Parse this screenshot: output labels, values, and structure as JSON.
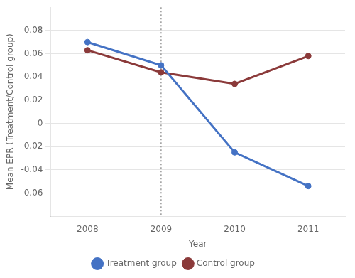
{
  "chart_data": {
    "type": "line",
    "x_label": "Year",
    "y_label": "Mean EPR (Treatment/Control group)",
    "x": [
      2008,
      2009,
      2010,
      2011
    ],
    "series": [
      {
        "name": "Treatment group",
        "color": "#4472C4",
        "marker": "circle",
        "values": [
          0.07,
          0.05,
          -0.025,
          -0.054
        ]
      },
      {
        "name": "Control group",
        "color": "#8B3A3A",
        "marker": "circle",
        "values": [
          0.063,
          0.044,
          0.034,
          0.058
        ]
      }
    ],
    "vline_x": 2009,
    "xlim": [
      2007.5,
      2011.5
    ],
    "xticks": [
      2008,
      2009,
      2010,
      2011
    ],
    "ylim": [
      -0.08,
      0.1
    ],
    "yticks": [
      -0.06,
      -0.04,
      -0.02,
      0,
      0.02,
      0.04,
      0.06,
      0.08
    ],
    "grid": "y",
    "legend": "bottom"
  }
}
